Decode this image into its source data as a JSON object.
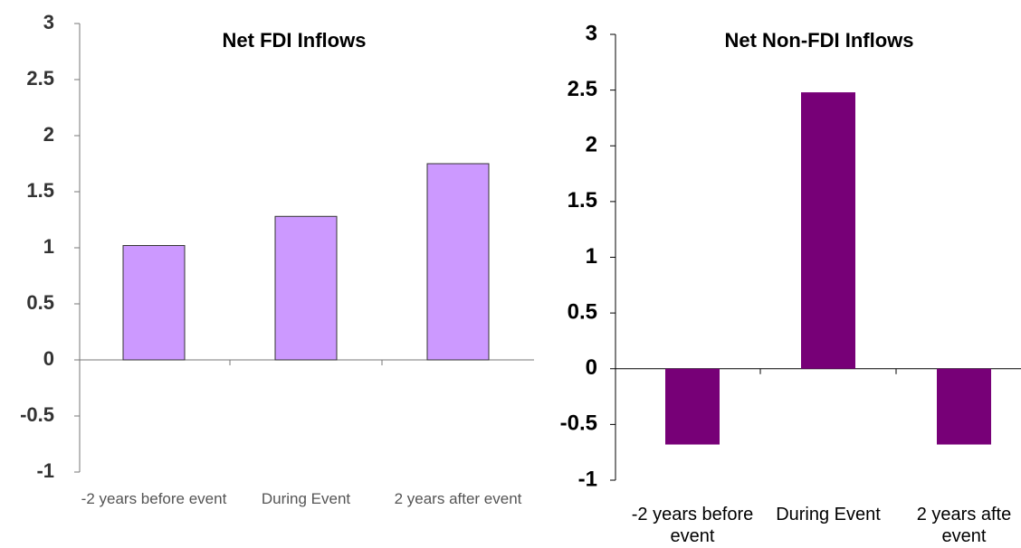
{
  "chart_data": [
    {
      "type": "bar",
      "title": "Net FDI Inflows",
      "categories": [
        "-2 years before event",
        "During Event",
        "2 years after event"
      ],
      "values": [
        1.02,
        1.28,
        1.75
      ],
      "color": "#cc99ff",
      "ylim": [
        -1,
        3
      ],
      "yticks": [
        -1,
        -0.5,
        0,
        0.5,
        1,
        1.5,
        2,
        2.5,
        3
      ]
    },
    {
      "type": "bar",
      "title": "Net Non-FDI Inflows",
      "categories": [
        "-2 years before event",
        "During Event",
        "2 years afte event"
      ],
      "values": [
        -0.68,
        2.48,
        -0.68
      ],
      "color": "#770077",
      "ylim": [
        -1,
        3
      ],
      "yticks": [
        -1,
        -0.5,
        0,
        0.5,
        1,
        1.5,
        2,
        2.5,
        3
      ]
    }
  ]
}
